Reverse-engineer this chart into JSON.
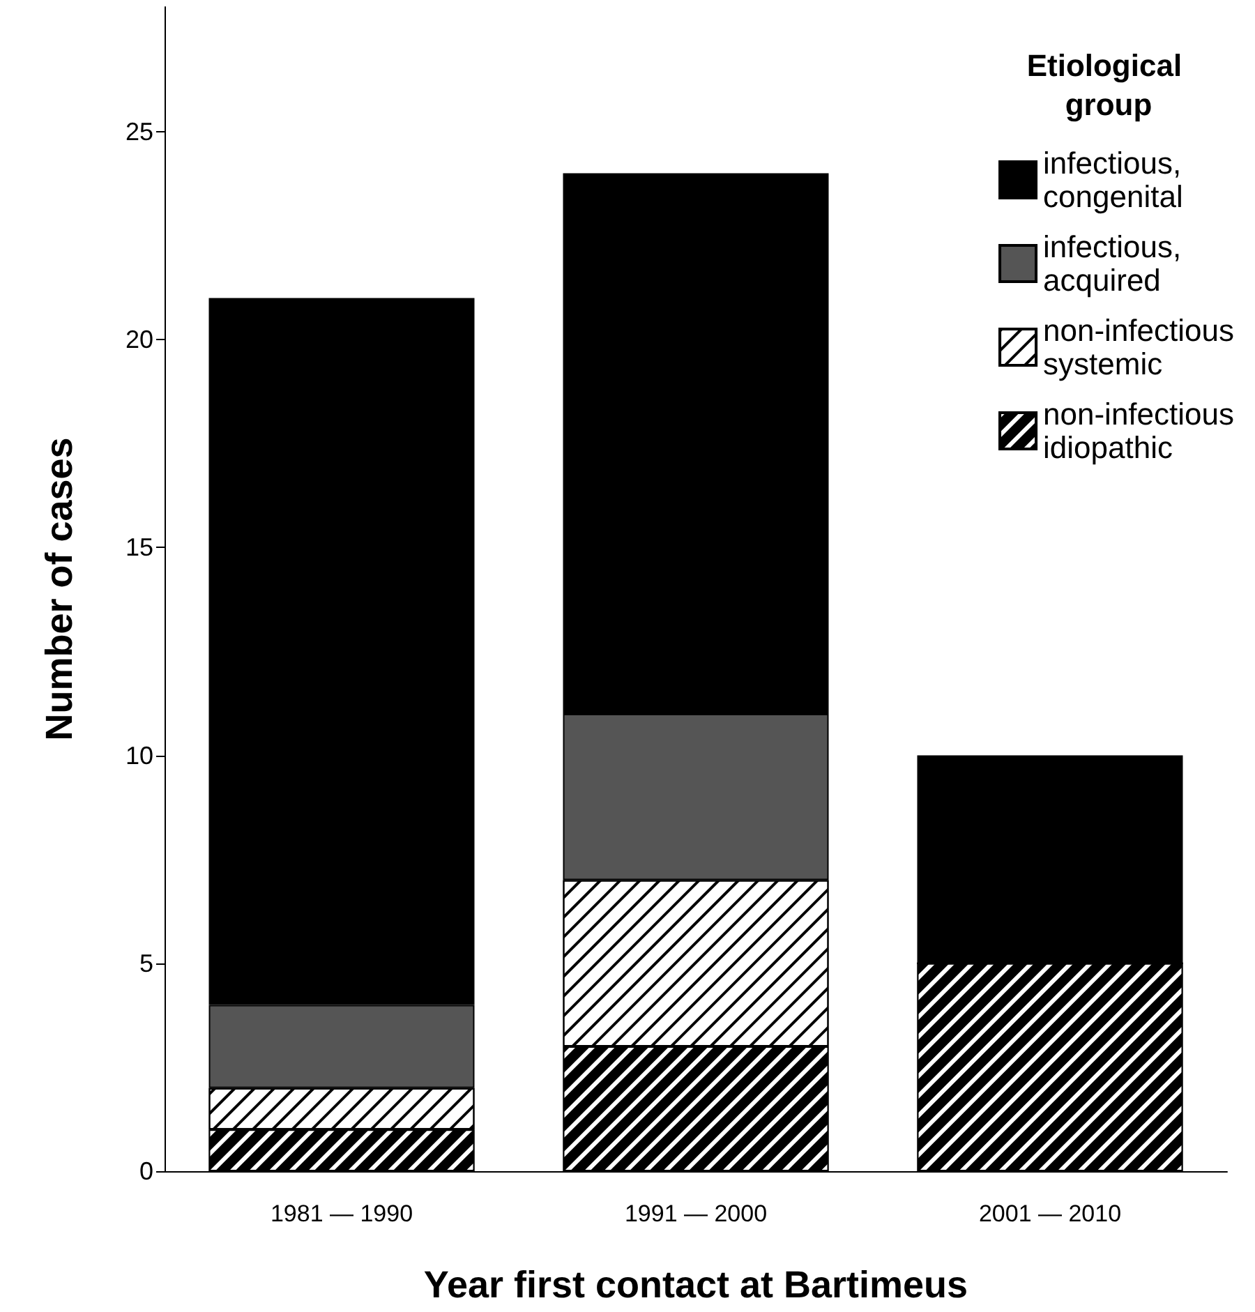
{
  "chart_data": {
    "type": "bar",
    "stacked": true,
    "xlabel": "Year first contact at Bartimeus",
    "ylabel": "Number of cases",
    "legend_title": "Etiological group",
    "legend": "top right",
    "grid": false,
    "categories": [
      "1981 — 1990",
      "1991 — 2000",
      "2001 — 2010"
    ],
    "series": [
      {
        "name": "non-infectious idiopathic",
        "color": "#000000",
        "values": [
          1,
          3,
          5
        ]
      },
      {
        "name": "non-infectious systemic",
        "color": "#ffffff",
        "values": [
          1,
          4,
          0
        ]
      },
      {
        "name": "infectious, acquired",
        "color": "#555555",
        "values": [
          2,
          4,
          0
        ]
      },
      {
        "name": "infectious, congenital",
        "color": "#000000",
        "values": [
          17,
          13,
          5
        ]
      }
    ],
    "ylim": [
      0,
      28
    ],
    "yticks": [
      0,
      5,
      10,
      15,
      20,
      25
    ]
  }
}
